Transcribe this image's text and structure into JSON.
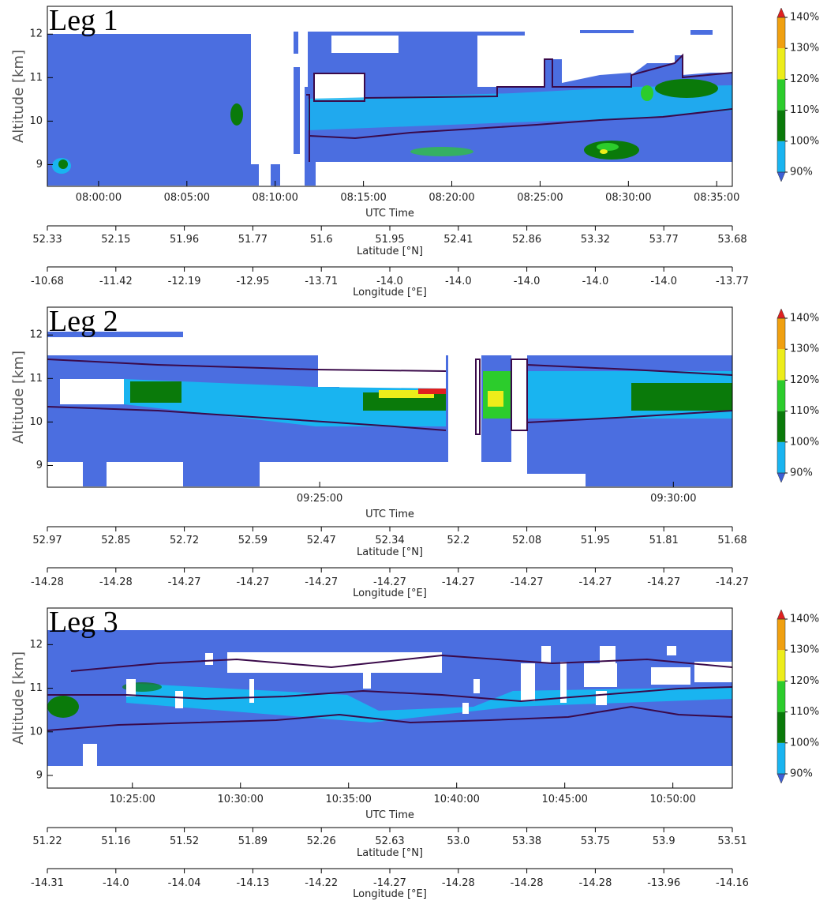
{
  "chart_data": [
    {
      "type": "heatmap",
      "title": "Leg 1",
      "ylabel": "Altitude [km]",
      "xlabel": "UTC Time",
      "ylim": [
        8.5,
        12.64
      ],
      "yticks": [
        9,
        10,
        11,
        12
      ],
      "xlim": [
        "07:57:06",
        "08:35:53"
      ],
      "xticks": [
        "08:00:00",
        "08:05:00",
        "08:10:00",
        "08:15:00",
        "08:20:00",
        "08:25:00",
        "08:30:00",
        "08:35:00"
      ],
      "lat_label": "Latitude [°N]",
      "lat_ticks": [
        52.33,
        52.15,
        51.96,
        51.77,
        51.6,
        51.95,
        52.41,
        52.86,
        53.32,
        53.77,
        53.68
      ],
      "lon_label": "Longitude [°E]",
      "lon_ticks": [
        -10.68,
        -11.42,
        -12.19,
        -12.95,
        -13.71,
        {
          "value": -14,
          "label": "-14.0"
        },
        {
          "value": -14,
          "label": "-14.0"
        },
        {
          "value": -14,
          "label": "-14.0"
        },
        {
          "value": -14,
          "label": "-14.0"
        },
        {
          "value": -14,
          "label": "-14.0"
        },
        -13.77
      ],
      "colorbar": {
        "ticks": [
          {
            "value": 90,
            "label": "90%"
          },
          {
            "value": 100,
            "label": "100%"
          },
          {
            "value": 110,
            "label": "110%"
          },
          {
            "value": 120,
            "label": "120%"
          },
          {
            "value": 130,
            "label": "130%"
          },
          {
            "value": 140,
            "label": "140%"
          }
        ],
        "colors": [
          "#19b4f0",
          "#0a7a0a",
          "#2ccc2c",
          "#eded1a",
          "#f0a010"
        ],
        "under_color": "#3d5fd6",
        "over_color": "#e02020"
      }
    },
    {
      "type": "heatmap",
      "title": "Leg 2",
      "ylabel": "Altitude [km]",
      "xlabel": "UTC Time",
      "ylim": [
        8.5,
        12.64
      ],
      "yticks": [
        9,
        10,
        11,
        12
      ],
      "xlim": [
        "09:21:09",
        "09:30:50"
      ],
      "xticks": [
        "09:25:00",
        "09:30:00"
      ],
      "lat_label": "Latitude [°N]",
      "lat_ticks": [
        52.97,
        52.85,
        52.72,
        52.59,
        52.47,
        52.34,
        52.2,
        52.08,
        51.95,
        51.81,
        51.68
      ],
      "lon_label": "Longitude [°E]",
      "lon_ticks": [
        -14.28,
        -14.28,
        -14.27,
        -14.27,
        -14.27,
        -14.27,
        -14.27,
        -14.27,
        -14.27,
        -14.27,
        -14.27
      ],
      "colorbar": {
        "ticks": [
          {
            "value": 90,
            "label": "90%"
          },
          {
            "value": 100,
            "label": "100%"
          },
          {
            "value": 110,
            "label": "110%"
          },
          {
            "value": 120,
            "label": "120%"
          },
          {
            "value": 130,
            "label": "130%"
          },
          {
            "value": 140,
            "label": "140%"
          }
        ],
        "colors": [
          "#19b4f0",
          "#0a7a0a",
          "#2ccc2c",
          "#eded1a",
          "#f0a010"
        ],
        "under_color": "#3d5fd6",
        "over_color": "#e02020"
      }
    },
    {
      "type": "heatmap",
      "title": "Leg 3",
      "ylabel": "Altitude [km]",
      "xlabel": "UTC Time",
      "ylim": [
        8.71,
        12.84
      ],
      "yticks": [
        9,
        10,
        11,
        12
      ],
      "xlim": [
        "10:21:04",
        "10:52:45"
      ],
      "xticks": [
        "10:25:00",
        "10:30:00",
        "10:35:00",
        "10:40:00",
        "10:45:00",
        "10:50:00"
      ],
      "lat_label": "Latitude [°N]",
      "lat_ticks": [
        51.22,
        51.16,
        51.52,
        51.89,
        52.26,
        52.63,
        {
          "value": 53,
          "label": "53.0"
        },
        53.38,
        53.75,
        53.9,
        53.51
      ],
      "lon_label": "Longitude [°E]",
      "lon_ticks": [
        -14.31,
        {
          "value": -14,
          "label": "-14.0"
        },
        -14.04,
        -14.13,
        -14.22,
        -14.27,
        -14.28,
        -14.28,
        -14.28,
        -13.96,
        -14.16
      ],
      "colorbar": {
        "ticks": [
          {
            "value": 90,
            "label": "90%"
          },
          {
            "value": 100,
            "label": "100%"
          },
          {
            "value": 110,
            "label": "110%"
          },
          {
            "value": 120,
            "label": "120%"
          },
          {
            "value": 130,
            "label": "130%"
          },
          {
            "value": 140,
            "label": "140%"
          }
        ],
        "colors": [
          "#19b4f0",
          "#0a7a0a",
          "#2ccc2c",
          "#eded1a",
          "#f0a010"
        ],
        "under_color": "#3d5fd6",
        "over_color": "#e02020"
      }
    }
  ]
}
